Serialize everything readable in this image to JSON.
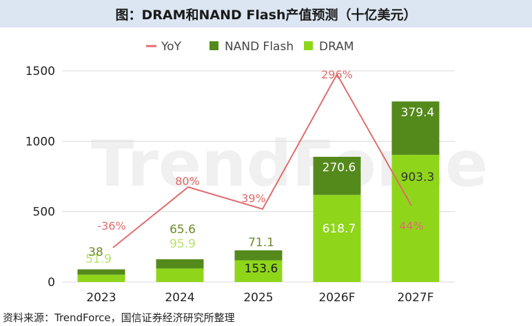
{
  "title": "图：DRAM和NAND Flash产值预测（十亿美元）",
  "source": "资料来源：TrendForce，国信证券经济研究所整理",
  "watermark": "TrendForce",
  "chart_data": {
    "type": "bar",
    "stacked": true,
    "categories": [
      "2023",
      "2024",
      "2025",
      "2026F",
      "2027F"
    ],
    "ylim": [
      0,
      1500
    ],
    "yticks": [
      0,
      500,
      1000,
      1500
    ],
    "grid": true,
    "legend_position": "top",
    "series": [
      {
        "name": "DRAM",
        "color": "#8fd61a",
        "values": [
          51.9,
          95.9,
          153.6,
          618.7,
          903.3
        ],
        "labels": [
          "51.9",
          "95.9",
          "153.6",
          "618.7",
          "903.3"
        ],
        "label_colors": [
          "#b7e36a",
          "#b7e36a",
          "#1a1a1a",
          "#ffffff",
          "#333333"
        ]
      },
      {
        "name": "NAND Flash",
        "color": "#548a1c",
        "values": [
          38,
          65.6,
          71.1,
          270.6,
          379.4
        ],
        "labels": [
          "38",
          "65.6",
          "71.1",
          "270.6",
          "379.4"
        ],
        "label_colors": [
          "#6a8a2a",
          "#6a8a2a",
          "#6a8a2a",
          "#ffffff",
          "#ffffff"
        ]
      }
    ],
    "line": {
      "name": "YoY",
      "color": "#e06b6b",
      "labels": [
        "-36%",
        "80%",
        "39%",
        "296%",
        "44%"
      ]
    },
    "legend": [
      {
        "name": "YoY",
        "color": "#e06b6b",
        "kind": "line"
      },
      {
        "name": "NAND Flash",
        "color": "#548a1c",
        "kind": "square"
      },
      {
        "name": "DRAM",
        "color": "#8fd61a",
        "kind": "square"
      }
    ]
  }
}
